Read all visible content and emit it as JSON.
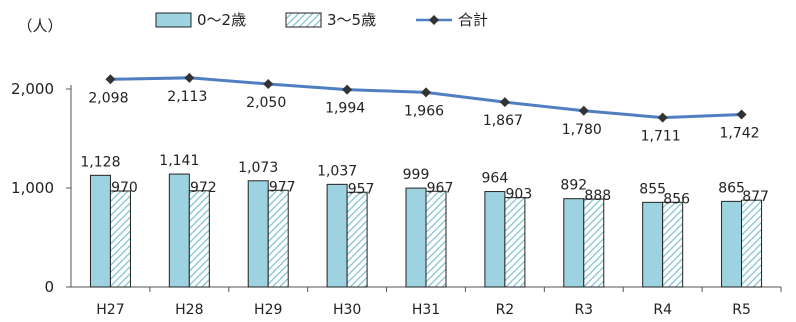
{
  "chart_data": {
    "type": "bar",
    "unit_label": "（人）",
    "categories": [
      "H27",
      "H28",
      "H29",
      "H30",
      "H31",
      "R2",
      "R3",
      "R4",
      "R5"
    ],
    "series": [
      {
        "name": "0～2歳",
        "kind": "bar",
        "color": "#9dd3e0",
        "pattern": "solid",
        "values": [
          1128,
          1141,
          1073,
          1037,
          999,
          964,
          892,
          855,
          865
        ]
      },
      {
        "name": "3～5歳",
        "kind": "bar",
        "color": "#9dd3e0",
        "pattern": "diagonal-hatch",
        "values": [
          970,
          972,
          977,
          957,
          967,
          903,
          888,
          856,
          877
        ]
      },
      {
        "name": "合計",
        "kind": "line",
        "color": "#4f7fc1",
        "marker": "diamond",
        "marker_color": "#333333",
        "values": [
          2098,
          2113,
          2050,
          1994,
          1966,
          1867,
          1780,
          1711,
          1742
        ]
      }
    ],
    "yticks": [
      0,
      1000,
      2000
    ],
    "ytick_labels": [
      "0",
      "1,000",
      "2,000"
    ],
    "ylim": [
      0,
      2000
    ],
    "grid": false,
    "legend_position": "top",
    "bar_labels": {
      "s0": [
        "1,128",
        "1,141",
        "1,073",
        "1,037",
        "999",
        "964",
        "892",
        "855",
        "865"
      ],
      "s1": [
        "970",
        "972",
        "977",
        "957",
        "967",
        "903",
        "888",
        "856",
        "877"
      ]
    },
    "line_labels": [
      "2,098",
      "2,113",
      "2,050",
      "1,994",
      "1,966",
      "1,867",
      "1,780",
      "1,711",
      "1,742"
    ]
  }
}
